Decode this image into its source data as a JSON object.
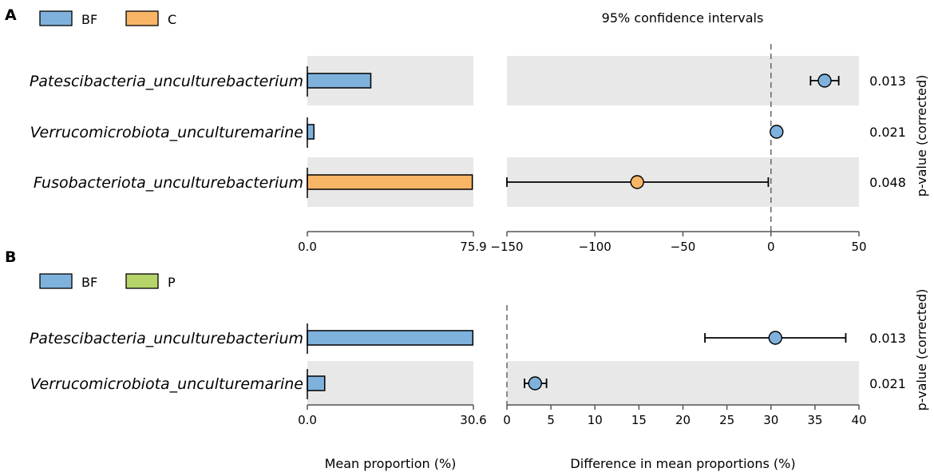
{
  "colors": {
    "BF": "#7eb2dd",
    "C": "#f8b566",
    "P": "#b5d46a",
    "shade": "#e8e8e8"
  },
  "chart_data": [
    {
      "type": "extended_error_bar",
      "panel": "A",
      "title": "95% confidence intervals",
      "legend": [
        {
          "label": "BF",
          "color": "#7eb2dd"
        },
        {
          "label": "C",
          "color": "#f8b566"
        }
      ],
      "features": [
        "Patescibacteria_unculturebacterium",
        "Verrucomicrobiota_unculturemarine",
        "Fusobacteriota_unculturebacterium"
      ],
      "mean_proportion": {
        "xlim": [
          0,
          75.9
        ],
        "tick_labels": [
          "0.0",
          "75.9"
        ],
        "bars": [
          {
            "group": "BF",
            "value": 29
          },
          {
            "group": "BF",
            "value": 3
          },
          {
            "group": "C",
            "value": 75.4
          }
        ]
      },
      "difference": {
        "xlim": [
          -150,
          50
        ],
        "ticks": [
          -150,
          -100,
          -50,
          0,
          50
        ],
        "tick_labels": [
          "−150",
          "−100",
          "−50",
          "0",
          "50"
        ],
        "points": [
          {
            "value": 30.5,
            "ci": [
              22.5,
              38.5
            ],
            "color": "#7eb2dd"
          },
          {
            "value": 3.2,
            "ci": [
              3.2,
              3.2
            ],
            "color": "#7eb2dd"
          },
          {
            "value": -76,
            "ci": [
              -150,
              -1.5
            ],
            "color": "#f8b566"
          }
        ]
      },
      "p_values": [
        "0.013",
        "0.021",
        "0.048"
      ],
      "p_axis_label": "p-value (corrected)"
    },
    {
      "type": "extended_error_bar",
      "panel": "B",
      "legend": [
        {
          "label": "BF",
          "color": "#7eb2dd"
        },
        {
          "label": "P",
          "color": "#b5d46a"
        }
      ],
      "features": [
        "Patescibacteria_unculturebacterium",
        "Verrucomicrobiota_unculturemarine"
      ],
      "mean_proportion": {
        "xlim": [
          0,
          30.6
        ],
        "tick_labels": [
          "0.0",
          "30.6"
        ],
        "bars": [
          {
            "group": "BF",
            "value": 30.5
          },
          {
            "group": "BF",
            "value": 3.2
          }
        ],
        "xlabel": "Mean proportion (%)"
      },
      "difference": {
        "xlim": [
          0,
          40
        ],
        "ticks": [
          0,
          5,
          10,
          15,
          20,
          25,
          30,
          35,
          40
        ],
        "tick_labels": [
          "0",
          "5",
          "10",
          "15",
          "20",
          "25",
          "30",
          "35",
          "40"
        ],
        "points": [
          {
            "value": 30.5,
            "ci": [
              22.5,
              38.5
            ],
            "color": "#7eb2dd"
          },
          {
            "value": 3.2,
            "ci": [
              2.0,
              4.5
            ],
            "color": "#7eb2dd"
          }
        ],
        "xlabel": "Difference in mean proportions (%)"
      },
      "p_values": [
        "0.013",
        "0.021"
      ],
      "p_axis_label": "p-value (corrected)"
    }
  ]
}
